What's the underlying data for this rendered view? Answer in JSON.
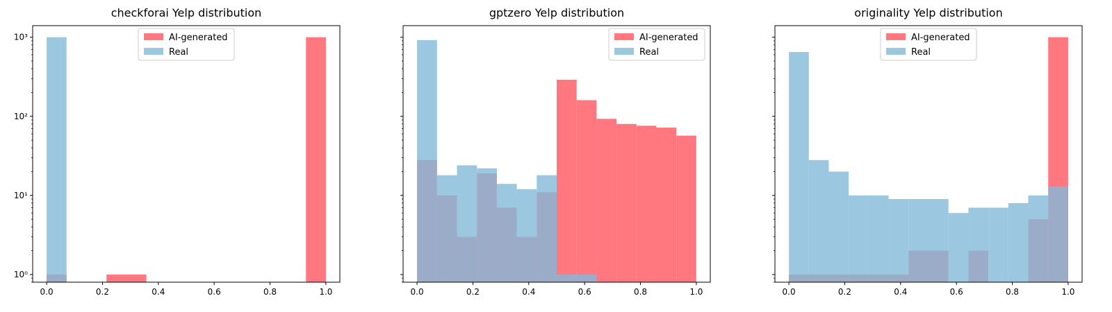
{
  "chart_data": [
    {
      "type": "bar",
      "title": "checkforai Yelp distribution",
      "yscale": "log",
      "xlim": [
        -0.05,
        1.05
      ],
      "ylim": [
        0.8,
        1400
      ],
      "xticks": [
        "0.0",
        "0.2",
        "0.4",
        "0.6",
        "0.8",
        "1.0"
      ],
      "yticks": [
        "10⁰",
        "10¹",
        "10²",
        "10³"
      ],
      "legend_position": "top-center",
      "series": [
        {
          "name": "AI-generated",
          "color": "#ff7179",
          "bin_edges": [
            0.0,
            0.0714,
            0.2143,
            0.3571,
            0.9286,
            1.0
          ],
          "values": [
            1,
            0,
            1,
            0,
            1000
          ]
        },
        {
          "name": "Real",
          "color": "#82b9d9",
          "bin_edges": [
            0.0,
            0.0714
          ],
          "values": [
            1000
          ]
        }
      ]
    },
    {
      "type": "bar",
      "title": "gptzero Yelp distribution",
      "yscale": "log",
      "xlim": [
        -0.05,
        1.05
      ],
      "ylim": [
        0.8,
        1400
      ],
      "xticks": [
        "0.0",
        "0.2",
        "0.4",
        "0.6",
        "0.8",
        "1.0"
      ],
      "yticks": [],
      "legend_position": "top-right",
      "series": [
        {
          "name": "AI-generated",
          "color": "#ff7179",
          "bin_edges": [
            0.0,
            0.0714,
            0.1429,
            0.2143,
            0.2857,
            0.3571,
            0.4286,
            0.5,
            0.5714,
            0.6429,
            0.7143,
            0.7857,
            0.8571,
            0.9286,
            1.0
          ],
          "values": [
            28,
            10,
            3,
            19,
            7,
            3,
            11,
            290,
            160,
            93,
            80,
            76,
            72,
            57
          ]
        },
        {
          "name": "Real",
          "color": "#82b9d9",
          "bin_edges": [
            0.0,
            0.0714,
            0.1429,
            0.2143,
            0.2857,
            0.3571,
            0.4286,
            0.5,
            0.5714,
            0.6429
          ],
          "values": [
            920,
            18,
            24,
            22,
            14,
            12,
            18,
            1,
            1
          ]
        }
      ]
    },
    {
      "type": "bar",
      "title": "originality Yelp distribution",
      "yscale": "log",
      "xlim": [
        -0.05,
        1.05
      ],
      "ylim": [
        0.8,
        1400
      ],
      "xticks": [
        "0.0",
        "0.2",
        "0.4",
        "0.6",
        "0.8",
        "1.0"
      ],
      "yticks": [],
      "legend_position": "top-center",
      "series": [
        {
          "name": "AI-generated",
          "color": "#ff7179",
          "bin_edges": [
            0.0,
            0.0714,
            0.1429,
            0.2143,
            0.2857,
            0.3571,
            0.4286,
            0.5,
            0.5714,
            0.6429,
            0.7143,
            0.7857,
            0.8571,
            0.9286,
            1.0
          ],
          "values": [
            1,
            1,
            1,
            1,
            1,
            1,
            2,
            2,
            0,
            2,
            0,
            0,
            5,
            1000
          ]
        },
        {
          "name": "Real",
          "color": "#82b9d9",
          "bin_edges": [
            0.0,
            0.0714,
            0.1429,
            0.2143,
            0.2857,
            0.3571,
            0.4286,
            0.5,
            0.5714,
            0.6429,
            0.7143,
            0.7857,
            0.8571,
            0.9286,
            1.0
          ],
          "values": [
            650,
            28,
            20,
            10,
            10,
            9,
            9,
            9,
            6,
            7,
            7,
            8,
            10,
            13
          ]
        }
      ]
    }
  ]
}
